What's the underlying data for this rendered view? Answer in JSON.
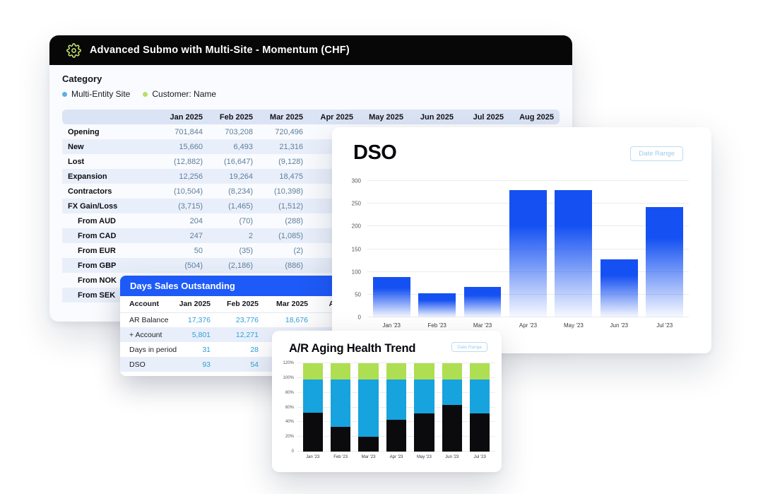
{
  "colors": {
    "header_black": "#070708",
    "accent_blue": "#1e5af7",
    "bar_blue": "#1551f2",
    "legend_blue": "#5fb0dd",
    "legend_green": "#b9df66",
    "gear_green": "#cfee6d",
    "table_value_blue": "#5e7e9b",
    "mini_value_blue": "#2aa0da",
    "date_range_blue": "#9fcbe9"
  },
  "momentum_panel": {
    "title": "Advanced Submo with Multi-Site - Momentum (CHF)",
    "section_label": "Category",
    "legend": [
      {
        "label": "Multi-Entity Site",
        "color": "#5fb0dd"
      },
      {
        "label": "Customer: Name",
        "color": "#b9df66"
      }
    ],
    "table": {
      "months": [
        "Jan 2025",
        "Feb 2025",
        "Mar 2025",
        "Apr 2025",
        "May 2025",
        "Jun 2025",
        "Jul 2025",
        "Aug 2025"
      ],
      "rows": [
        {
          "label": "Opening",
          "indent": false,
          "values": [
            "701,844",
            "703,208",
            "720,496",
            "",
            "",
            "",
            "",
            ""
          ]
        },
        {
          "label": "New",
          "indent": false,
          "values": [
            "15,660",
            "6,493",
            "21,316",
            "",
            "",
            "",
            "",
            ""
          ]
        },
        {
          "label": "Lost",
          "indent": false,
          "values": [
            "(12,882)",
            "(16,647)",
            "(9,128)",
            "",
            "",
            "",
            "",
            ""
          ]
        },
        {
          "label": "Expansion",
          "indent": false,
          "values": [
            "12,256",
            "19,264",
            "18,475",
            "",
            "",
            "",
            "",
            ""
          ]
        },
        {
          "label": "Contractors",
          "indent": false,
          "values": [
            "(10,504)",
            "(8,234)",
            "(10,398)",
            "",
            "",
            "",
            "",
            ""
          ]
        },
        {
          "label": "FX Gain/Loss",
          "indent": false,
          "values": [
            "(3,715)",
            "(1,465)",
            "(1,512)",
            "",
            "",
            "",
            "",
            ""
          ]
        },
        {
          "label": "From AUD",
          "indent": true,
          "values": [
            "204",
            "(70)",
            "(288)",
            "",
            "",
            "",
            "",
            ""
          ]
        },
        {
          "label": "From CAD",
          "indent": true,
          "values": [
            "247",
            "2",
            "(1,085)",
            "",
            "",
            "",
            "",
            ""
          ]
        },
        {
          "label": "From EUR",
          "indent": true,
          "values": [
            "50",
            "(35)",
            "(2)",
            "",
            "",
            "",
            "",
            ""
          ]
        },
        {
          "label": "From GBP",
          "indent": true,
          "values": [
            "(504)",
            "(2,186)",
            "(886)",
            "",
            "",
            "",
            "",
            ""
          ]
        },
        {
          "label": "From NOK",
          "indent": true,
          "values": [
            "",
            "",
            "",
            "",
            "",
            "",
            "",
            ""
          ]
        },
        {
          "label": "From SEK",
          "indent": true,
          "values": [
            "",
            "",
            "",
            "",
            "",
            "",
            "",
            ""
          ]
        }
      ]
    }
  },
  "dso_table_panel": {
    "title": "Days Sales Outstanding",
    "columns": [
      "Account",
      "Jan 2025",
      "Feb 2025",
      "Mar 2025",
      "Apr 2025"
    ],
    "rows": [
      {
        "label": "AR Balance",
        "values": [
          "17,376",
          "23,776",
          "18,676",
          ""
        ]
      },
      {
        "label": "+ Account",
        "values": [
          "5,801",
          "12,271",
          "",
          ""
        ]
      },
      {
        "label": "Days in period",
        "values": [
          "31",
          "28",
          "",
          ""
        ]
      },
      {
        "label": "DSO",
        "values": [
          "93",
          "54",
          "",
          ""
        ]
      }
    ]
  },
  "dso_chart_panel": {
    "title": "DSO",
    "button_label": "Date Range"
  },
  "ar_panel": {
    "title": "A/R Aging Health Trend",
    "button_label": "Date Range"
  },
  "chart_data": [
    {
      "id": "dso",
      "type": "bar",
      "title": "DSO",
      "categories": [
        "Jan '23",
        "Feb '23",
        "Mar '23",
        "Apr '23",
        "May '23",
        "Jun '23",
        "Jul '23"
      ],
      "values": [
        88,
        53,
        67,
        280,
        280,
        127,
        242
      ],
      "xlabel": "",
      "ylabel": "",
      "ylim": [
        0,
        300
      ],
      "yticks": [
        0,
        50,
        100,
        150,
        200,
        250,
        300
      ],
      "grid": true,
      "legend_position": "none",
      "bar_style": "blue gradient fading to white at base"
    },
    {
      "id": "ar_aging",
      "type": "bar",
      "stacked": true,
      "title": "A/R Aging Health Trend",
      "categories": [
        "Jan '23",
        "Feb '23",
        "Mar '23",
        "Apr '23",
        "May '23",
        "Jun '23",
        "Jul '23"
      ],
      "series": [
        {
          "name": "bottom-black",
          "color": "#0b0b0e",
          "values": [
            53,
            34,
            20,
            43,
            52,
            63,
            52
          ]
        },
        {
          "name": "middle-blue",
          "color": "#17a3dd",
          "values": [
            45,
            64,
            78,
            55,
            46,
            35,
            46
          ]
        },
        {
          "name": "top-green",
          "color": "#aede52",
          "values": [
            22,
            22,
            22,
            22,
            22,
            22,
            22
          ]
        }
      ],
      "xlabel": "",
      "ylabel": "",
      "ylim": [
        0,
        120
      ],
      "yticks": [
        0,
        20,
        40,
        60,
        80,
        100,
        120
      ],
      "ytick_labels": [
        "0",
        "20%",
        "40%",
        "60%",
        "80%",
        "100%",
        "120%"
      ],
      "grid": true,
      "legend_position": "none"
    }
  ]
}
